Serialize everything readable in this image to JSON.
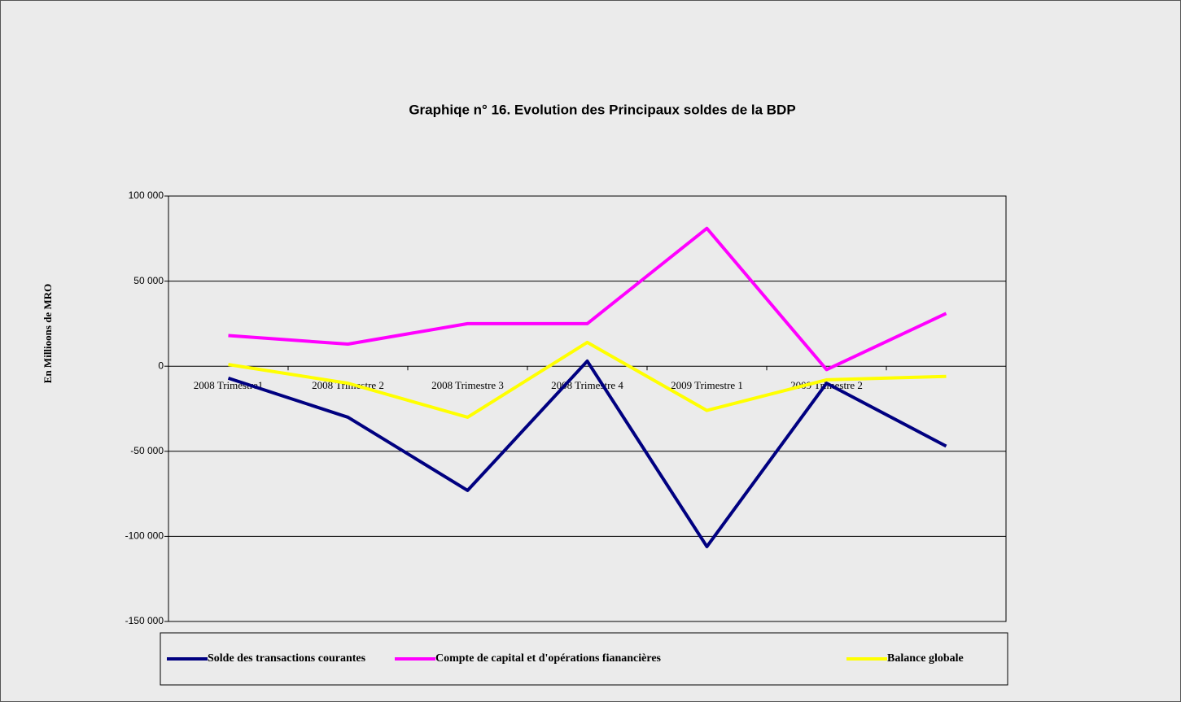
{
  "chart_data": {
    "type": "line",
    "title": "Graphiqe n° 16. Evolution des Principaux soldes de la BDP",
    "y_label": "En Millioons de MRO",
    "categories": [
      "2008 Trimestre1",
      "2008 Trimestre 2",
      "2008 Trimestre 3",
      "2008  Trimestre 4",
      "2009  Trimestre 1",
      "2009 Trimestre 2",
      null
    ],
    "series": [
      {
        "name": "Solde des transactions courantes",
        "color": "#000080",
        "values": [
          -7000,
          -30000,
          -73000,
          3000,
          -106000,
          -10000,
          -47000
        ]
      },
      {
        "name": "Compte de capital et d'opérations fianancières",
        "color": "#ff00ff",
        "values": [
          18000,
          13000,
          25000,
          25000,
          81000,
          -2000,
          31000
        ]
      },
      {
        "name": "Balance globale",
        "color": "#ffff00",
        "values": [
          1000,
          -10000,
          -30000,
          14000,
          -26000,
          -8000,
          -6000
        ]
      }
    ],
    "ylim": [
      -150000,
      100000
    ],
    "yticks": [
      {
        "value": -150000,
        "label": "-150 000"
      },
      {
        "value": -100000,
        "label": "-100 000"
      },
      {
        "value": -50000,
        "label": "-50 000"
      },
      0,
      {
        "value": 50000,
        "label": "50 000"
      },
      {
        "value": 100000,
        "label": "100 000"
      }
    ],
    "grid": true,
    "legend": "bottom"
  }
}
